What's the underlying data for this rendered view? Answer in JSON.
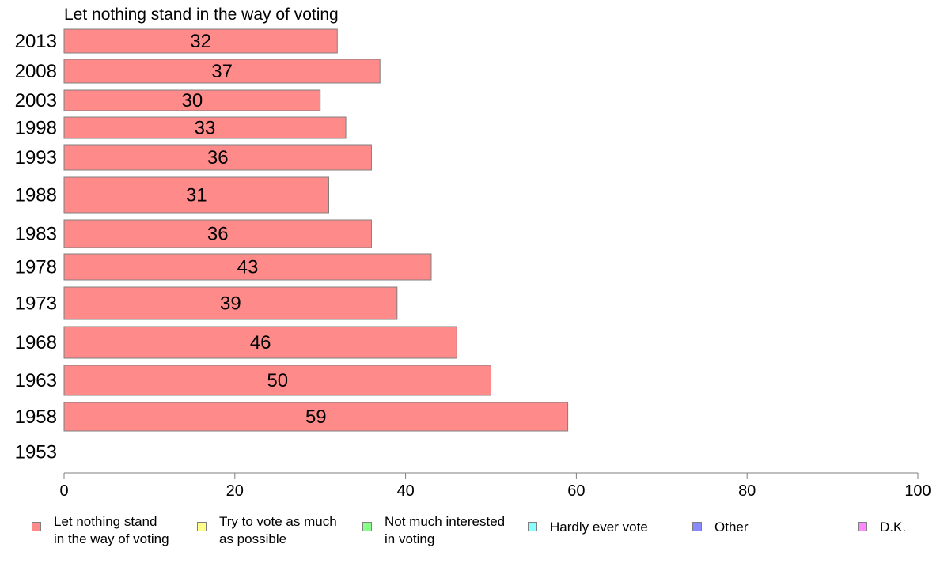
{
  "chart_data": {
    "type": "bar",
    "orientation": "horizontal",
    "title": "Let nothing stand in the way of voting",
    "categories": [
      "2013",
      "2008",
      "2003",
      "1998",
      "1993",
      "1988",
      "1983",
      "1978",
      "1973",
      "1968",
      "1963",
      "1958",
      "1953"
    ],
    "series": [
      {
        "name": "Let nothing stand\nin the way of voting",
        "color": "#ff8a8a",
        "values": [
          32,
          37,
          30,
          33,
          36,
          31,
          36,
          43,
          39,
          46,
          50,
          59,
          null
        ]
      }
    ],
    "data_labels": [
      "32",
      "37",
      "30",
      "33",
      "36",
      "31",
      "36",
      "43",
      "39",
      "46",
      "50",
      "59",
      ""
    ],
    "xlim": [
      0,
      100
    ],
    "xticks": [
      "0",
      "20",
      "40",
      "60",
      "80",
      "100"
    ],
    "grid": false,
    "legend_position": "bottom",
    "legend": [
      {
        "label": "Let nothing stand\nin the way of voting",
        "color": "#ff8a8a"
      },
      {
        "label": "Try to vote as much\nas possible",
        "color": "#ffff8a"
      },
      {
        "label": "Not much interested\nin voting",
        "color": "#8aff8a"
      },
      {
        "label": "Hardly ever vote",
        "color": "#8affff"
      },
      {
        "label": "Other",
        "color": "#8a8aff"
      },
      {
        "label": "D.K.",
        "color": "#ff8aff"
      }
    ]
  }
}
